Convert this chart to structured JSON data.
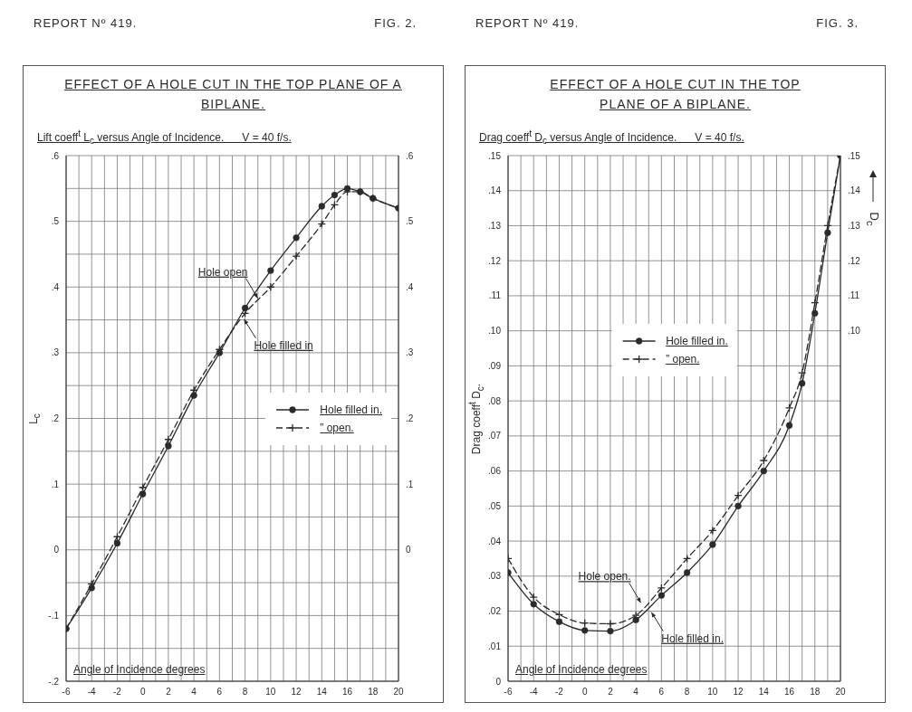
{
  "chart_data": [
    {
      "type": "line",
      "title": "EFFECT OF A HOLE CUT IN THE TOP PLANE OF A BIPLANE.",
      "subtitle": "Lift coeff$^{t}$ L$_{c}$ versus Angle of Incidence.      V = 40 f/s.",
      "xlabel": "Angle of Incidence degrees",
      "ylabel": "L$_{c}$",
      "annotations": [
        "REPORT Nº 419.",
        "FIG. 2.",
        {
          "text": "Hole filled in",
          "x": 7.7,
          "y": 0.358
        },
        {
          "text": "Hole open",
          "x": 9.2,
          "y": 0.376
        }
      ],
      "x": [
        -6,
        -4,
        -2,
        0,
        2,
        4,
        6,
        8,
        10,
        12,
        14,
        15,
        16,
        17,
        18,
        20
      ],
      "series": [
        {
          "name": "Hole filled in.",
          "color": "#2b2b2b",
          "marker": "circle",
          "line_style": "solid",
          "values": [
            -0.12,
            -0.058,
            0.01,
            0.085,
            0.158,
            0.235,
            0.3,
            0.368,
            0.425,
            0.475,
            0.523,
            0.54,
            0.55,
            0.545,
            0.535,
            0.52
          ]
        },
        {
          "name": "” open.",
          "color": "#2b2b2b",
          "marker": "cross",
          "line_style": "dashed",
          "values": [
            -0.12,
            -0.052,
            0.02,
            0.095,
            0.168,
            0.243,
            0.305,
            0.36,
            0.4,
            0.447,
            0.496,
            0.525,
            0.545,
            0.545,
            0.535,
            0.52
          ]
        }
      ],
      "xlim": [
        -6,
        20
      ],
      "xticks": [
        -6,
        {
          "value": -5,
          "label": null
        },
        -4,
        {
          "value": -3,
          "label": null
        },
        -2,
        {
          "value": -1,
          "label": null
        },
        0,
        {
          "value": 1,
          "label": null
        },
        2,
        {
          "value": 3,
          "label": null
        },
        4,
        {
          "value": 5,
          "label": null
        },
        6,
        {
          "value": 7,
          "label": null
        },
        8,
        {
          "value": 9,
          "label": null
        },
        10,
        {
          "value": 11,
          "label": null
        },
        12,
        {
          "value": 13,
          "label": null
        },
        14,
        {
          "value": 15,
          "label": null
        },
        16,
        {
          "value": 17,
          "label": null
        },
        18,
        {
          "value": 19,
          "label": null
        },
        20
      ],
      "ylim": [
        -0.2,
        0.6
      ],
      "yticks": [
        {
          "value": -0.2,
          "label": "-.2"
        },
        {
          "value": -0.15,
          "label": null
        },
        {
          "value": -0.1,
          "label": "-.1"
        },
        {
          "value": -0.05,
          "label": null
        },
        0,
        {
          "value": 0.05,
          "label": null
        },
        {
          "value": 0.1,
          "label": ".1"
        },
        {
          "value": 0.15,
          "label": null
        },
        {
          "value": 0.2,
          "label": ".2"
        },
        {
          "value": 0.25,
          "label": null
        },
        {
          "value": 0.3,
          "label": ".3"
        },
        {
          "value": 0.35,
          "label": null
        },
        {
          "value": 0.4,
          "label": ".4"
        },
        {
          "value": 0.45,
          "label": null
        },
        {
          "value": 0.5,
          "label": ".5"
        },
        {
          "value": 0.55,
          "label": null
        },
        {
          "value": 0.6,
          "label": ".6"
        }
      ],
      "y2lim": [
        -0.2,
        0.6
      ],
      "y2ticks": [
        0,
        {
          "value": 0.1,
          "label": ".1"
        },
        {
          "value": 0.2,
          "label": ".2"
        },
        {
          "value": 0.3,
          "label": ".3"
        },
        {
          "value": 0.4,
          "label": ".4"
        },
        {
          "value": 0.5,
          "label": ".5"
        },
        {
          "value": 0.6,
          "label": ".6"
        }
      ],
      "grid": true,
      "legend": "right"
    },
    {
      "type": "line",
      "title": "EFFECT OF A HOLE CUT IN THE TOP\nPLANE OF A BIPLANE.",
      "subtitle": "Drag coeff$^{t}$ D$_{c}$ versus Angle of Incidence.      V = 40 f/s.",
      "xlabel": "Angle of Incidence degrees",
      "ylabel": "Drag coeff$^{t}$ D$_{c}$.",
      "y2label": "D$_{c}$",
      "annotations": [
        "REPORT Nº 419.",
        "FIG. 3.",
        {
          "text": "Hole filled in.",
          "x": 5,
          "y": 0.021
        },
        {
          "text": "Hole open.",
          "x": 4.6,
          "y": 0.0211
        }
      ],
      "x": [
        -6,
        -4,
        -2,
        0,
        2,
        4,
        6,
        8,
        10,
        12,
        14,
        16,
        17,
        18,
        19,
        20
      ],
      "series": [
        {
          "name": "Hole filled in.",
          "color": "#2b2b2b",
          "marker": "circle",
          "line_style": "solid",
          "values": [
            0.031,
            0.022,
            0.017,
            0.0145,
            0.0143,
            0.0175,
            0.0245,
            0.031,
            0.039,
            0.05,
            0.06,
            0.073,
            0.085,
            0.105,
            0.128,
            0.15
          ]
        },
        {
          "name": "” open.",
          "color": "#2b2b2b",
          "marker": "cross",
          "line_style": "dashed",
          "values": [
            0.035,
            0.024,
            0.019,
            0.0166,
            0.0164,
            0.0188,
            0.0266,
            0.035,
            0.043,
            0.053,
            0.063,
            0.078,
            0.088,
            0.108,
            0.13,
            0.15
          ]
        }
      ],
      "xlim": [
        -6,
        20
      ],
      "xticks": [
        -6,
        {
          "value": -5,
          "label": null
        },
        -4,
        {
          "value": -3,
          "label": null
        },
        -2,
        {
          "value": -1,
          "label": null
        },
        0,
        {
          "value": 1,
          "label": null
        },
        2,
        {
          "value": 3,
          "label": null
        },
        4,
        {
          "value": 5,
          "label": null
        },
        6,
        {
          "value": 7,
          "label": null
        },
        8,
        {
          "value": 9,
          "label": null
        },
        10,
        {
          "value": 11,
          "label": null
        },
        12,
        {
          "value": 13,
          "label": null
        },
        14,
        {
          "value": 15,
          "label": null
        },
        16,
        {
          "value": 17,
          "label": null
        },
        18,
        {
          "value": 19,
          "label": null
        },
        20
      ],
      "ylim": [
        0,
        0.15
      ],
      "yticks": [
        0,
        {
          "value": 0.01,
          "label": ".01"
        },
        {
          "value": 0.02,
          "label": ".02"
        },
        {
          "value": 0.03,
          "label": ".03"
        },
        {
          "value": 0.04,
          "label": ".04"
        },
        {
          "value": 0.05,
          "label": ".05"
        },
        {
          "value": 0.06,
          "label": ".06"
        },
        {
          "value": 0.07,
          "label": ".07"
        },
        {
          "value": 0.08,
          "label": ".08"
        },
        {
          "value": 0.09,
          "label": ".09"
        },
        {
          "value": 0.1,
          "label": ".10"
        },
        {
          "value": 0.11,
          "label": ".11"
        },
        {
          "value": 0.12,
          "label": ".12"
        },
        {
          "value": 0.13,
          "label": ".13"
        },
        {
          "value": 0.14,
          "label": ".14"
        },
        {
          "value": 0.15,
          "label": ".15"
        }
      ],
      "y2lim": [
        0,
        0.15
      ],
      "y2ticks": [
        {
          "value": 0.1,
          "label": ".10"
        },
        {
          "value": 0.11,
          "label": ".11"
        },
        {
          "value": 0.12,
          "label": ".12"
        },
        {
          "value": 0.13,
          "label": ".13"
        },
        {
          "value": 0.14,
          "label": ".14"
        },
        {
          "value": 0.15,
          "label": ".15"
        }
      ],
      "grid": true,
      "legend": "top"
    }
  ]
}
